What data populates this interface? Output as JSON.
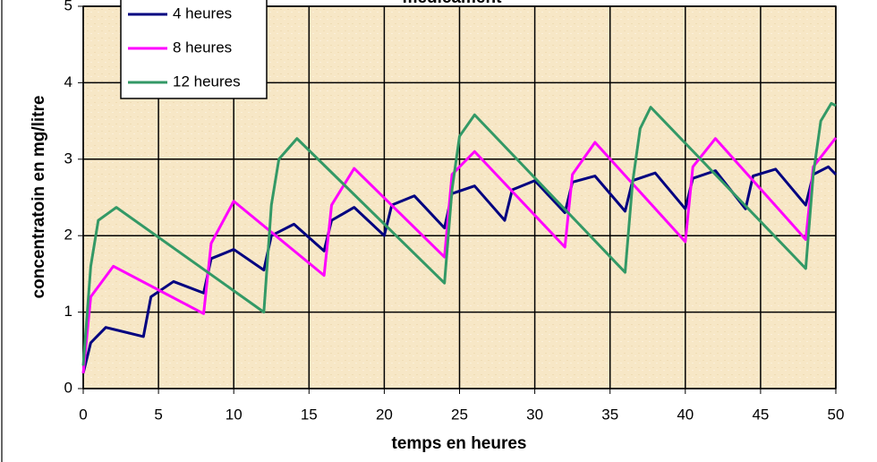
{
  "chart_data": {
    "type": "line",
    "title": "médicament",
    "x_label": "temps en heures",
    "y_label": "concentratoin en mg/litre",
    "xlim": [
      0,
      50
    ],
    "xticks": [
      0,
      5,
      10,
      15,
      20,
      25,
      30,
      35,
      40,
      45,
      50
    ],
    "ylim": [
      0,
      5
    ],
    "yticks": [
      0,
      1,
      2,
      3,
      4,
      5
    ],
    "grid": true,
    "legend": "top-left",
    "series": [
      {
        "name": "4 heures",
        "color": "#000080",
        "x": [
          0,
          0.5,
          1.5,
          4,
          4.5,
          6,
          8,
          8.5,
          10,
          12,
          12.5,
          14,
          16,
          16.5,
          18,
          20,
          20.5,
          22,
          24,
          24.5,
          26,
          28,
          28.5,
          30,
          32,
          32.5,
          34,
          36,
          36.5,
          38,
          40,
          40.5,
          42,
          44,
          44.5,
          46,
          48,
          48.5,
          49.5,
          50
        ],
        "values": [
          0.2,
          0.6,
          0.8,
          0.68,
          1.2,
          1.4,
          1.25,
          1.7,
          1.82,
          1.55,
          2.0,
          2.15,
          1.8,
          2.2,
          2.37,
          2.0,
          2.4,
          2.52,
          2.1,
          2.55,
          2.65,
          2.2,
          2.6,
          2.72,
          2.3,
          2.7,
          2.78,
          2.32,
          2.72,
          2.82,
          2.35,
          2.75,
          2.85,
          2.35,
          2.78,
          2.87,
          2.4,
          2.8,
          2.9,
          2.8
        ]
      },
      {
        "name": "8 heures",
        "color": "#ff00ff",
        "x": [
          0,
          0.5,
          2,
          8,
          8.5,
          10,
          16,
          16.5,
          18,
          24,
          24.5,
          26,
          32,
          32.5,
          34,
          40,
          40.5,
          42,
          48,
          48.5,
          50
        ],
        "values": [
          0.2,
          1.2,
          1.6,
          0.98,
          1.9,
          2.45,
          1.48,
          2.4,
          2.88,
          1.72,
          2.8,
          3.1,
          1.85,
          2.8,
          3.22,
          1.92,
          2.9,
          3.27,
          1.95,
          2.9,
          3.28
        ]
      },
      {
        "name": "12 heures",
        "color": "#339966",
        "x": [
          0,
          0.5,
          1,
          2.2,
          12,
          12.5,
          13,
          14.2,
          24,
          24.5,
          25,
          26,
          36,
          36.5,
          37,
          37.7,
          48,
          48.5,
          49,
          49.7,
          50
        ],
        "values": [
          0.3,
          1.6,
          2.2,
          2.37,
          1.0,
          2.4,
          3.0,
          3.27,
          1.38,
          2.6,
          3.3,
          3.58,
          1.52,
          2.7,
          3.4,
          3.68,
          1.57,
          2.8,
          3.5,
          3.73,
          3.7
        ]
      }
    ]
  }
}
